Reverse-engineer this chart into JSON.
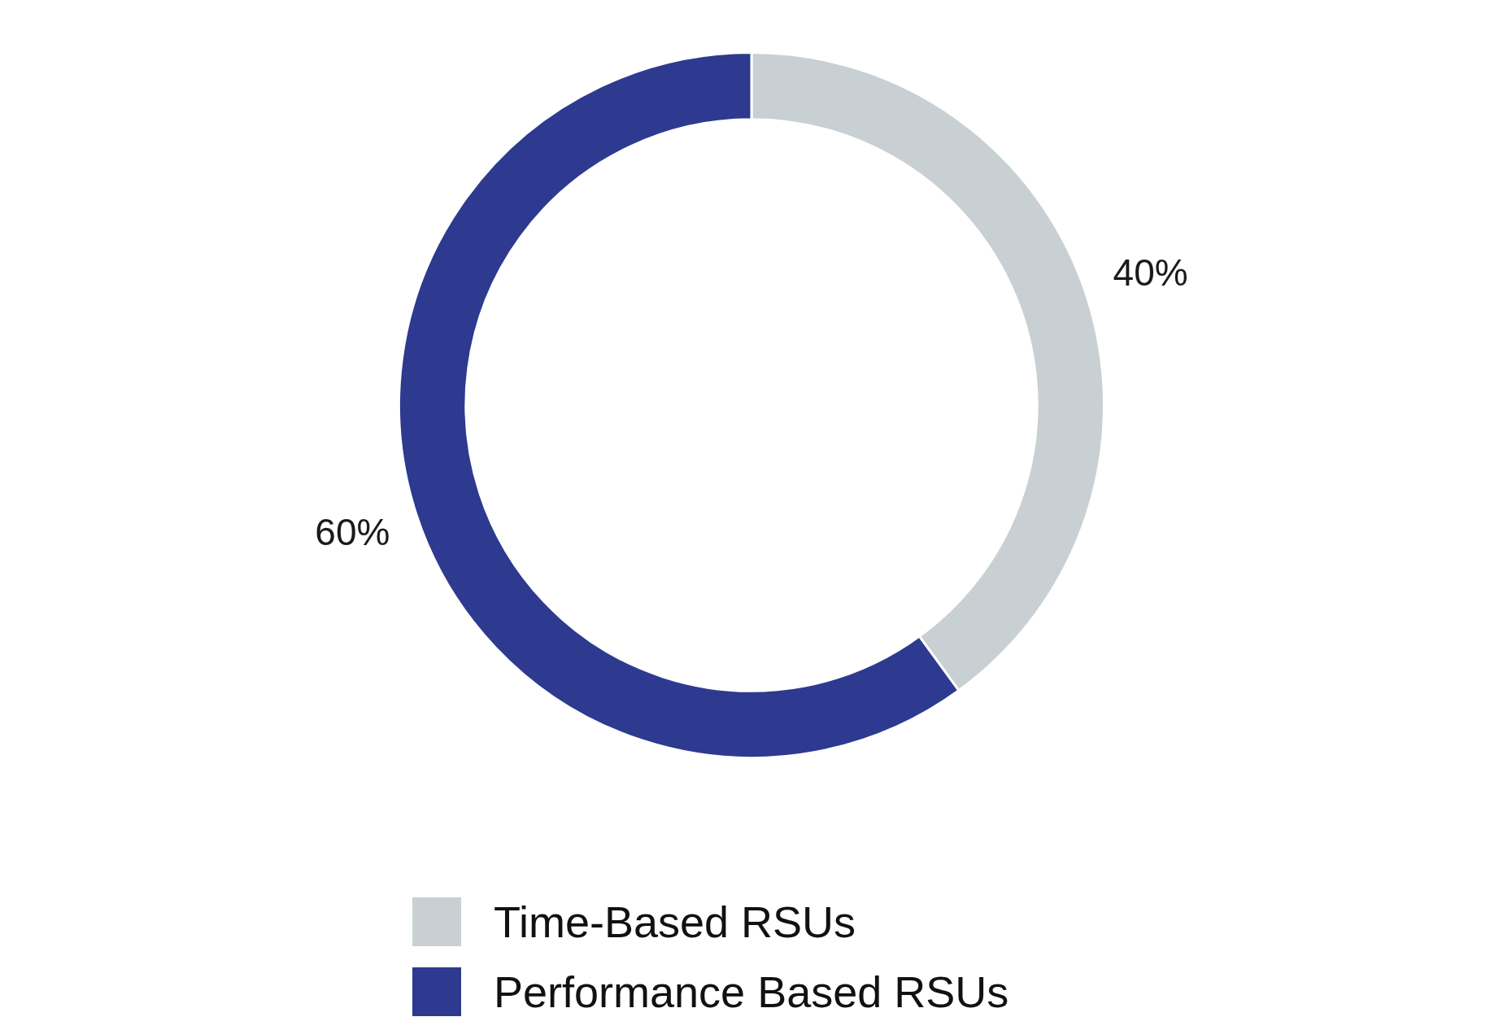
{
  "chart_data": {
    "type": "donut",
    "categories": [
      "Time-Based RSUs",
      "Performance Based RSUs"
    ],
    "values": [
      40,
      60
    ],
    "colors": [
      "#c9d0d3",
      "#2d3a8f"
    ],
    "value_labels": [
      "40%",
      "60%"
    ],
    "legend": "bottom"
  }
}
